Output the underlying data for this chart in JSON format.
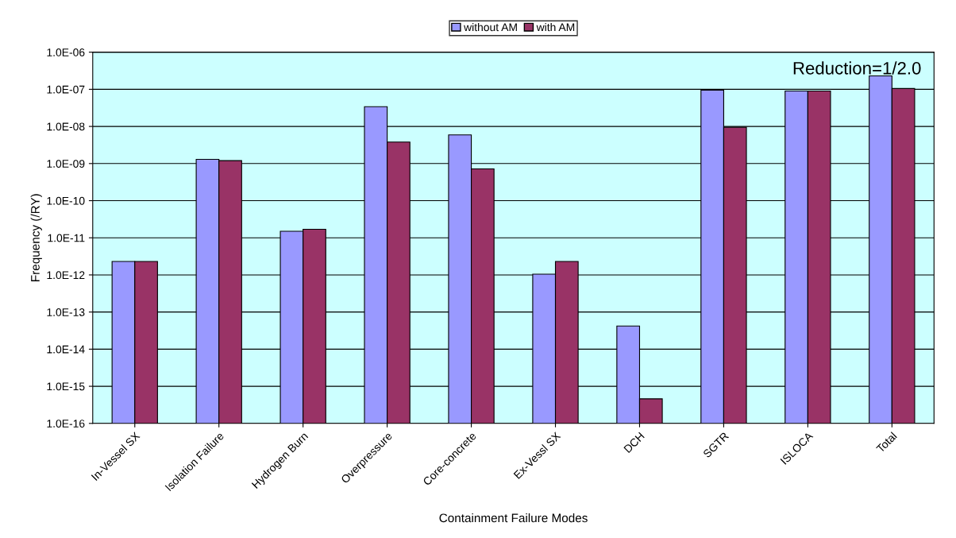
{
  "chart_data": {
    "type": "bar",
    "xlabel": "Containment Failure Modes",
    "ylabel": "Frequency (/RY)",
    "categories": [
      "In-Vessel SX",
      "Isolation Failure",
      "Hydrogen Burn",
      "Overpressure",
      "Core-concrete",
      "Ex-Vessl SX",
      "DCH",
      "SGTR",
      "ISLOCA",
      "Total"
    ],
    "series": [
      {
        "name": "without AM",
        "color": "#9999ff",
        "values": [
          2.3e-12,
          1.3e-09,
          1.5e-11,
          3.4e-08,
          5.9e-09,
          1.05e-12,
          4.2e-14,
          9.5e-08,
          9e-08,
          2.3e-07
        ]
      },
      {
        "name": "with AM",
        "color": "#993366",
        "values": [
          2.3e-12,
          1.2e-09,
          1.7e-11,
          3.8e-09,
          7.2e-10,
          2.3e-12,
          4.6e-16,
          9.5e-09,
          9e-08,
          1.05e-07
        ]
      }
    ],
    "log": "y",
    "ylim": [
      1e-16,
      1e-06
    ],
    "yticks": [
      {
        "value": 1e-16,
        "label": "1.0E-16"
      },
      {
        "value": 1e-15,
        "label": "1.0E-15"
      },
      {
        "value": 1e-14,
        "label": "1.0E-14"
      },
      {
        "value": 1e-13,
        "label": "1.0E-13"
      },
      {
        "value": 1e-12,
        "label": "1.0E-12"
      },
      {
        "value": 1e-11,
        "label": "1.0E-11"
      },
      {
        "value": 1e-10,
        "label": "1.0E-10"
      },
      {
        "value": 1e-09,
        "label": "1.0E-09"
      },
      {
        "value": 1e-08,
        "label": "1.0E-08"
      },
      {
        "value": 1e-07,
        "label": "1.0E-07"
      },
      {
        "value": 1e-06,
        "label": "1.0E-06"
      }
    ],
    "grid": "y",
    "legend": "top",
    "annotations": [
      "Reduction=1/2.0"
    ]
  }
}
